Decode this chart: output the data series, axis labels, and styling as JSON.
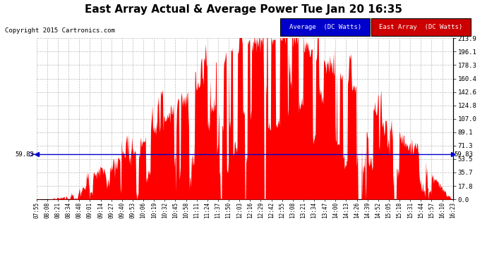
{
  "title": "East Array Actual & Average Power Tue Jan 20 16:35",
  "copyright": "Copyright 2015 Cartronics.com",
  "average_value": 59.83,
  "y_max": 213.9,
  "y_min": 0.0,
  "y_ticks_right": [
    0.0,
    17.8,
    35.7,
    53.5,
    71.3,
    89.1,
    107.0,
    124.8,
    142.6,
    160.4,
    178.3,
    196.1,
    213.9
  ],
  "x_labels": [
    "07:55",
    "08:08",
    "08:21",
    "08:34",
    "08:48",
    "09:01",
    "09:14",
    "09:27",
    "09:40",
    "09:53",
    "10:06",
    "10:19",
    "10:32",
    "10:45",
    "10:58",
    "11:11",
    "11:24",
    "11:37",
    "11:50",
    "12:03",
    "12:16",
    "12:29",
    "12:42",
    "12:55",
    "13:08",
    "13:21",
    "13:34",
    "13:47",
    "14:00",
    "14:13",
    "14:26",
    "14:39",
    "14:52",
    "15:05",
    "15:18",
    "15:31",
    "15:44",
    "15:57",
    "16:10",
    "16:23"
  ],
  "avg_color": "#0000cc",
  "east_color": "#ff0000",
  "background_color": "#ffffff",
  "grid_color": "#aaaaaa",
  "legend_avg_bg": "#0000cc",
  "legend_east_bg": "#cc0000",
  "legend_avg_label": "Average  (DC Watts)",
  "legend_east_label": "East Array  (DC Watts)"
}
